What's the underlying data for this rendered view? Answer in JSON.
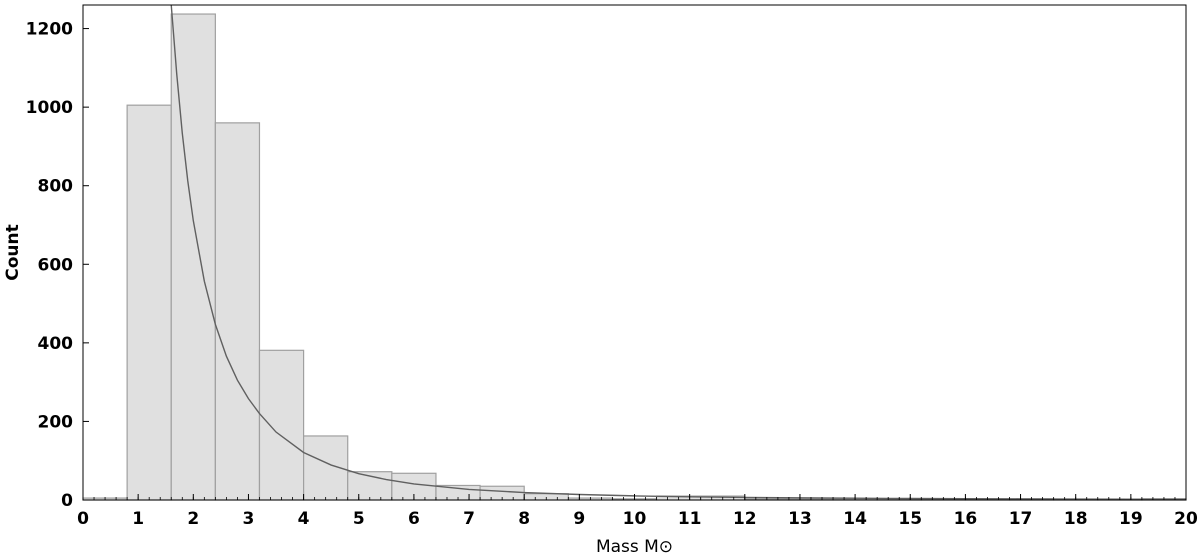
{
  "chart_data": {
    "type": "bar",
    "title": "",
    "xlabel": "Mass M⊙",
    "ylabel": "Count",
    "xlim": [
      0,
      20
    ],
    "ylim": [
      0,
      1260
    ],
    "xticks": [
      0,
      1,
      2,
      3,
      4,
      5,
      6,
      7,
      8,
      9,
      10,
      11,
      12,
      13,
      14,
      15,
      16,
      17,
      18,
      19,
      20
    ],
    "xtick_labels": [
      "0",
      "1",
      "2",
      "3",
      "4",
      "5",
      "6",
      "7",
      "8",
      "9",
      "10",
      "11",
      "12",
      "13",
      "14",
      "15",
      "16",
      "17",
      "18",
      "19",
      "20"
    ],
    "yticks": [
      0,
      200,
      400,
      600,
      800,
      1000,
      1200
    ],
    "ytick_labels": [
      "0",
      "200",
      "400",
      "600",
      "800",
      "1000",
      "1200"
    ],
    "bin_width": 0.8,
    "bins": [
      {
        "x0": 0.0,
        "x1": 0.8,
        "count": 5
      },
      {
        "x0": 0.8,
        "x1": 1.6,
        "count": 1005
      },
      {
        "x0": 1.6,
        "x1": 2.4,
        "count": 1237
      },
      {
        "x0": 2.4,
        "x1": 3.2,
        "count": 960
      },
      {
        "x0": 3.2,
        "x1": 4.0,
        "count": 381
      },
      {
        "x0": 4.0,
        "x1": 4.8,
        "count": 163
      },
      {
        "x0": 4.8,
        "x1": 5.6,
        "count": 72
      },
      {
        "x0": 5.6,
        "x1": 6.4,
        "count": 68
      },
      {
        "x0": 6.4,
        "x1": 7.2,
        "count": 37
      },
      {
        "x0": 7.2,
        "x1": 8.0,
        "count": 35
      },
      {
        "x0": 8.0,
        "x1": 8.8,
        "count": 16
      },
      {
        "x0": 8.8,
        "x1": 9.6,
        "count": 5
      },
      {
        "x0": 9.6,
        "x1": 10.4,
        "count": 3
      },
      {
        "x0": 10.4,
        "x1": 11.2,
        "count": 10
      },
      {
        "x0": 11.2,
        "x1": 12.0,
        "count": 10
      },
      {
        "x0": 12.0,
        "x1": 12.8,
        "count": 3
      },
      {
        "x0": 12.8,
        "x1": 13.6,
        "count": 2
      },
      {
        "x0": 13.6,
        "x1": 14.4,
        "count": 2
      },
      {
        "x0": 14.4,
        "x1": 15.2,
        "count": 2
      },
      {
        "x0": 15.2,
        "x1": 16.0,
        "count": 2
      },
      {
        "x0": 16.0,
        "x1": 16.8,
        "count": 3
      },
      {
        "x0": 16.8,
        "x1": 17.6,
        "count": 3
      },
      {
        "x0": 17.6,
        "x1": 18.4,
        "count": 2
      },
      {
        "x0": 18.4,
        "x1": 19.2,
        "count": 2
      },
      {
        "x0": 19.2,
        "x1": 20.0,
        "count": 3
      }
    ],
    "fit_curve": {
      "type": "line",
      "x": [
        1.6,
        1.7,
        1.8,
        1.9,
        2.0,
        2.2,
        2.4,
        2.6,
        2.8,
        3.0,
        3.2,
        3.5,
        4.0,
        4.5,
        5.0,
        5.5,
        6.0,
        7.0,
        8.0,
        9.0,
        10.0,
        11.0,
        12.0,
        13.0,
        14.0,
        15.0,
        16.0,
        17.0,
        18.0,
        19.0,
        20.0
      ],
      "y": [
        1271,
        1084,
        934,
        812,
        711,
        557,
        447,
        366,
        305,
        258,
        220,
        173,
        121,
        89,
        67,
        52,
        41,
        27,
        19,
        14,
        10.5,
        8.2,
        6.6,
        5.4,
        4.5,
        3.8,
        3.2,
        2.8,
        2.4,
        2.1,
        1.9
      ]
    },
    "grid": false,
    "legend": "none",
    "colors": {
      "bar_fill": "#e0e0e0",
      "bar_edge": "#a0a0a0",
      "curve": "#606060",
      "axis": "#000000"
    }
  }
}
